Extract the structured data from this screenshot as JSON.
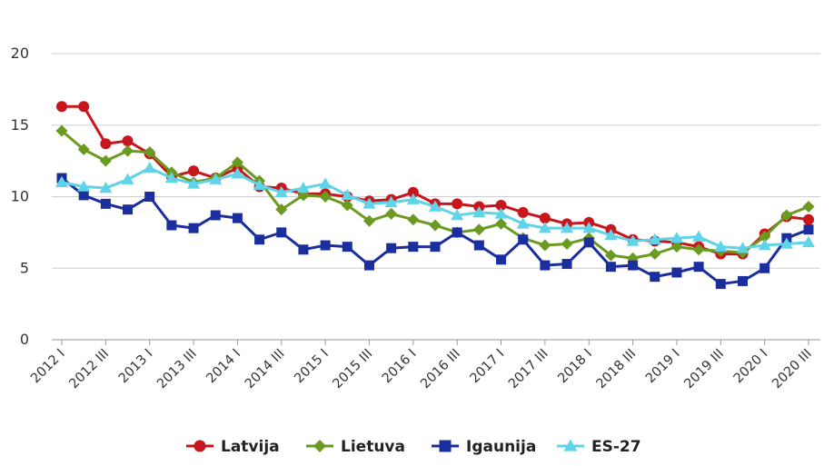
{
  "chart_data": {
    "type": "line",
    "title": "",
    "xlabel": "",
    "ylabel": "",
    "ylim": [
      0,
      20
    ],
    "yticks": [
      0,
      5,
      10,
      15,
      20
    ],
    "grid": "horizontal",
    "legend_position": "bottom",
    "categories": [
      "2012 I",
      "2012 II",
      "2012 III",
      "2012 IV",
      "2013 I",
      "2013 II",
      "2013 III",
      "2013 IV",
      "2014 I",
      "2014 II",
      "2014 III",
      "2014 IV",
      "2015 I",
      "2015 II",
      "2015 III",
      "2015 IV",
      "2016 I",
      "2016 II",
      "2016 III",
      "2016 IV",
      "2017 I",
      "2017 II",
      "2017 III",
      "2017 IV",
      "2018 I",
      "2018 II",
      "2018 III",
      "2018 IV",
      "2019 I",
      "2019 II",
      "2019 III",
      "2019 IV",
      "2020 I",
      "2020 II",
      "2020 III"
    ],
    "tick_labels": [
      "2012 I",
      "2012 III",
      "2013 I",
      "2013 III",
      "2014 I",
      "2014 III",
      "2015 I",
      "2015 III",
      "2016 I",
      "2016 III",
      "2017 I",
      "2017 III",
      "2018 I",
      "2018 III",
      "2019 I",
      "2019 III",
      "2020 I",
      "2020 III"
    ],
    "series": [
      {
        "name": "Latvija",
        "color": "#c8161d",
        "marker": "circle",
        "values": [
          16.3,
          16.3,
          13.7,
          13.9,
          13.0,
          11.4,
          11.8,
          11.3,
          12.0,
          10.7,
          10.6,
          10.2,
          10.2,
          10.0,
          9.7,
          9.8,
          10.3,
          9.5,
          9.5,
          9.3,
          9.4,
          8.9,
          8.5,
          8.1,
          8.2,
          7.7,
          7.0,
          6.9,
          6.8,
          6.5,
          6.0,
          6.0,
          7.4,
          8.6,
          8.4
        ]
      },
      {
        "name": "Lietuva",
        "color": "#6a9a1f",
        "marker": "diamond",
        "values": [
          14.6,
          13.3,
          12.5,
          13.2,
          13.1,
          11.7,
          11.0,
          11.3,
          12.4,
          11.1,
          9.1,
          10.1,
          10.0,
          9.4,
          8.3,
          8.8,
          8.4,
          8.0,
          7.5,
          7.7,
          8.1,
          7.1,
          6.6,
          6.7,
          7.1,
          5.9,
          5.7,
          6.0,
          6.5,
          6.3,
          6.2,
          6.1,
          7.2,
          8.7,
          9.3
        ]
      },
      {
        "name": "Igaunija",
        "color": "#1b2e9e",
        "marker": "square",
        "values": [
          11.3,
          10.1,
          9.5,
          9.1,
          10.0,
          8.0,
          7.8,
          8.7,
          8.5,
          7.0,
          7.5,
          6.3,
          6.6,
          6.5,
          5.2,
          6.4,
          6.5,
          6.5,
          7.5,
          6.6,
          5.6,
          7.0,
          5.2,
          5.3,
          6.8,
          5.1,
          5.2,
          4.4,
          4.7,
          5.1,
          3.9,
          4.1,
          5.0,
          7.1,
          7.7
        ]
      },
      {
        "name": "ES-27",
        "color": "#5fd3e8",
        "marker": "triangle",
        "values": [
          11.0,
          10.7,
          10.6,
          11.2,
          12.0,
          11.3,
          10.9,
          11.2,
          11.6,
          10.8,
          10.3,
          10.6,
          10.9,
          10.1,
          9.5,
          9.6,
          9.8,
          9.3,
          8.7,
          8.9,
          8.8,
          8.1,
          7.8,
          7.8,
          7.8,
          7.3,
          6.9,
          7.0,
          7.1,
          7.2,
          6.5,
          6.4,
          6.6,
          6.7,
          6.8
        ]
      }
    ]
  }
}
